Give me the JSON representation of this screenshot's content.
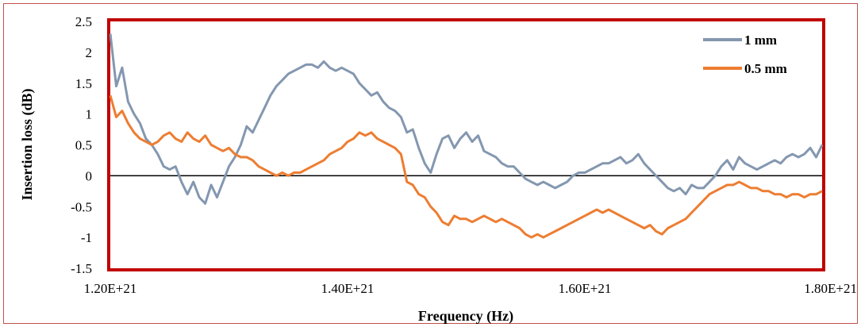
{
  "chart_data": {
    "type": "line",
    "xlabel": "Frequency (Hz)",
    "ylabel": "Insertion loss (dB)",
    "xlim": [
      1.2e+21,
      1.8e+21
    ],
    "ylim": [
      -1.5,
      2.5
    ],
    "x_ticks": [
      {
        "value": 1.2e+21,
        "label": "1.20E+21"
      },
      {
        "value": 1.4e+21,
        "label": "1.40E+21"
      },
      {
        "value": 1.6e+21,
        "label": "1.60E+21"
      },
      {
        "value": 1.8e+21,
        "label": "1.80E+21"
      }
    ],
    "y_ticks": [
      {
        "value": 2.5,
        "label": "2.5"
      },
      {
        "value": 2,
        "label": "2"
      },
      {
        "value": 1.5,
        "label": "1.5"
      },
      {
        "value": 1,
        "label": "1"
      },
      {
        "value": 0.5,
        "label": "0.5"
      },
      {
        "value": 0,
        "label": "0"
      },
      {
        "value": -0.5,
        "label": "-0.5"
      },
      {
        "value": -1,
        "label": "-1"
      },
      {
        "value": -1.5,
        "label": "-1.5"
      }
    ],
    "grid": false,
    "legend_position": "top-right",
    "x": [
      1.2e+21,
      1.205e+21,
      1.21e+21,
      1.215e+21,
      1.22e+21,
      1.225e+21,
      1.23e+21,
      1.235e+21,
      1.24e+21,
      1.245e+21,
      1.25e+21,
      1.255e+21,
      1.26e+21,
      1.265e+21,
      1.27e+21,
      1.275e+21,
      1.28e+21,
      1.285e+21,
      1.29e+21,
      1.295e+21,
      1.3e+21,
      1.305e+21,
      1.31e+21,
      1.315e+21,
      1.32e+21,
      1.325e+21,
      1.33e+21,
      1.335e+21,
      1.34e+21,
      1.345e+21,
      1.35e+21,
      1.355e+21,
      1.36e+21,
      1.365e+21,
      1.37e+21,
      1.375e+21,
      1.38e+21,
      1.385e+21,
      1.39e+21,
      1.395e+21,
      1.4e+21,
      1.405e+21,
      1.41e+21,
      1.415e+21,
      1.42e+21,
      1.425e+21,
      1.43e+21,
      1.435e+21,
      1.44e+21,
      1.445e+21,
      1.45e+21,
      1.455e+21,
      1.46e+21,
      1.465e+21,
      1.47e+21,
      1.475e+21,
      1.48e+21,
      1.485e+21,
      1.49e+21,
      1.495e+21,
      1.5e+21,
      1.505e+21,
      1.51e+21,
      1.515e+21,
      1.52e+21,
      1.525e+21,
      1.53e+21,
      1.535e+21,
      1.54e+21,
      1.545e+21,
      1.55e+21,
      1.555e+21,
      1.56e+21,
      1.565e+21,
      1.57e+21,
      1.575e+21,
      1.58e+21,
      1.585e+21,
      1.59e+21,
      1.595e+21,
      1.6e+21,
      1.605e+21,
      1.61e+21,
      1.615e+21,
      1.62e+21,
      1.625e+21,
      1.63e+21,
      1.635e+21,
      1.64e+21,
      1.645e+21,
      1.65e+21,
      1.655e+21,
      1.66e+21,
      1.665e+21,
      1.67e+21,
      1.675e+21,
      1.68e+21,
      1.685e+21,
      1.69e+21,
      1.695e+21,
      1.7e+21,
      1.705e+21,
      1.71e+21,
      1.715e+21,
      1.72e+21,
      1.725e+21,
      1.73e+21,
      1.735e+21,
      1.74e+21,
      1.745e+21,
      1.75e+21,
      1.755e+21,
      1.76e+21,
      1.765e+21,
      1.77e+21,
      1.775e+21,
      1.78e+21,
      1.785e+21,
      1.79e+21,
      1.795e+21,
      1.8e+21
    ],
    "series": [
      {
        "name": "1 mm",
        "color": "#8497b0",
        "values": [
          2.3,
          1.45,
          1.75,
          1.2,
          1.0,
          0.85,
          0.6,
          0.5,
          0.35,
          0.15,
          0.1,
          0.15,
          -0.1,
          -0.3,
          -0.1,
          -0.35,
          -0.45,
          -0.15,
          -0.35,
          -0.1,
          0.15,
          0.3,
          0.5,
          0.8,
          0.7,
          0.9,
          1.1,
          1.3,
          1.45,
          1.55,
          1.65,
          1.7,
          1.75,
          1.8,
          1.8,
          1.75,
          1.85,
          1.75,
          1.7,
          1.75,
          1.7,
          1.65,
          1.5,
          1.4,
          1.3,
          1.35,
          1.2,
          1.1,
          1.05,
          0.95,
          0.7,
          0.75,
          0.45,
          0.2,
          0.05,
          0.35,
          0.6,
          0.65,
          0.45,
          0.6,
          0.7,
          0.55,
          0.65,
          0.4,
          0.35,
          0.3,
          0.2,
          0.15,
          0.15,
          0.05,
          -0.05,
          -0.1,
          -0.15,
          -0.1,
          -0.15,
          -0.2,
          -0.15,
          -0.1,
          0.0,
          0.05,
          0.05,
          0.1,
          0.15,
          0.2,
          0.2,
          0.25,
          0.3,
          0.2,
          0.25,
          0.35,
          0.2,
          0.1,
          0.0,
          -0.1,
          -0.2,
          -0.25,
          -0.2,
          -0.3,
          -0.15,
          -0.2,
          -0.2,
          -0.1,
          0.0,
          0.15,
          0.25,
          0.1,
          0.3,
          0.2,
          0.15,
          0.1,
          0.15,
          0.2,
          0.25,
          0.2,
          0.3,
          0.35,
          0.3,
          0.35,
          0.45,
          0.3,
          0.5
        ]
      },
      {
        "name": "0.5 mm",
        "color": "#ed7d31",
        "values": [
          1.3,
          0.95,
          1.05,
          0.85,
          0.7,
          0.6,
          0.55,
          0.5,
          0.55,
          0.65,
          0.7,
          0.6,
          0.55,
          0.7,
          0.6,
          0.55,
          0.65,
          0.5,
          0.45,
          0.4,
          0.45,
          0.35,
          0.3,
          0.3,
          0.25,
          0.15,
          0.1,
          0.05,
          0.0,
          0.05,
          0.0,
          0.05,
          0.05,
          0.1,
          0.15,
          0.2,
          0.25,
          0.35,
          0.4,
          0.45,
          0.55,
          0.6,
          0.7,
          0.65,
          0.7,
          0.6,
          0.55,
          0.5,
          0.45,
          0.35,
          -0.1,
          -0.15,
          -0.3,
          -0.35,
          -0.5,
          -0.6,
          -0.75,
          -0.8,
          -0.65,
          -0.7,
          -0.7,
          -0.75,
          -0.7,
          -0.65,
          -0.7,
          -0.75,
          -0.7,
          -0.75,
          -0.8,
          -0.85,
          -0.95,
          -1.0,
          -0.95,
          -1.0,
          -0.95,
          -0.9,
          -0.85,
          -0.8,
          -0.75,
          -0.7,
          -0.65,
          -0.6,
          -0.55,
          -0.6,
          -0.55,
          -0.6,
          -0.65,
          -0.7,
          -0.75,
          -0.8,
          -0.85,
          -0.8,
          -0.9,
          -0.95,
          -0.85,
          -0.8,
          -0.75,
          -0.7,
          -0.6,
          -0.5,
          -0.4,
          -0.3,
          -0.25,
          -0.2,
          -0.15,
          -0.15,
          -0.1,
          -0.15,
          -0.2,
          -0.2,
          -0.25,
          -0.25,
          -0.3,
          -0.3,
          -0.35,
          -0.3,
          -0.3,
          -0.35,
          -0.3,
          -0.3,
          -0.25
        ]
      }
    ]
  }
}
